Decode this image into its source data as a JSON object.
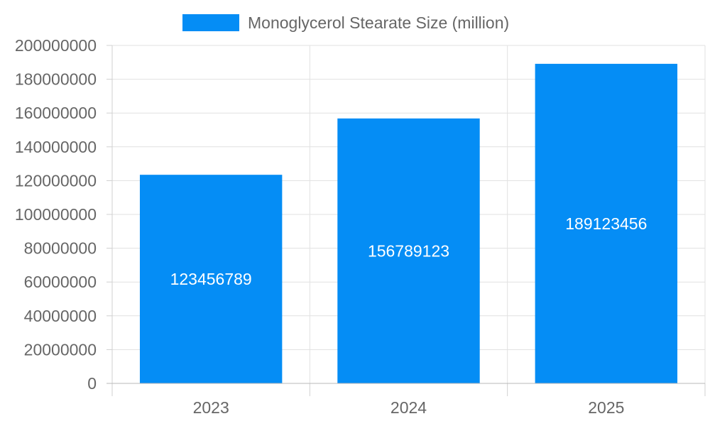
{
  "chart_data": {
    "type": "bar",
    "categories": [
      "2023",
      "2024",
      "2025"
    ],
    "series": [
      {
        "name": "Monoglycerol Stearate Size (million)",
        "values": [
          123456789,
          156789123,
          189123456
        ],
        "color": "#058DF5"
      }
    ],
    "ylim": [
      0,
      200000000
    ],
    "yticks": [
      0,
      20000000,
      40000000,
      60000000,
      80000000,
      100000000,
      120000000,
      140000000,
      160000000,
      180000000,
      200000000
    ],
    "grid": true,
    "legend_position": "top-center",
    "data_labels": true
  }
}
